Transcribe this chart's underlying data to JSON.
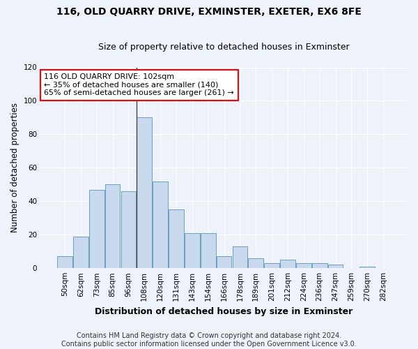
{
  "title": "116, OLD QUARRY DRIVE, EXMINSTER, EXETER, EX6 8FE",
  "subtitle": "Size of property relative to detached houses in Exminster",
  "xlabel": "Distribution of detached houses by size in Exminster",
  "ylabel": "Number of detached properties",
  "bar_color": "#c8d9ed",
  "bar_edge_color": "#6a9fc0",
  "background_color": "#eef2fa",
  "categories": [
    "50sqm",
    "62sqm",
    "73sqm",
    "85sqm",
    "96sqm",
    "108sqm",
    "120sqm",
    "131sqm",
    "143sqm",
    "154sqm",
    "166sqm",
    "178sqm",
    "189sqm",
    "201sqm",
    "212sqm",
    "224sqm",
    "236sqm",
    "247sqm",
    "259sqm",
    "270sqm",
    "282sqm"
  ],
  "values": [
    7,
    19,
    47,
    50,
    46,
    90,
    52,
    35,
    21,
    21,
    7,
    13,
    6,
    3,
    5,
    3,
    3,
    2,
    0,
    1,
    0
  ],
  "annotation_text": "116 OLD QUARRY DRIVE: 102sqm\n← 35% of detached houses are smaller (140)\n65% of semi-detached houses are larger (261) →",
  "vline_x_index": 5,
  "ylim": [
    0,
    120
  ],
  "yticks": [
    0,
    20,
    40,
    60,
    80,
    100,
    120
  ],
  "footer_line1": "Contains HM Land Registry data © Crown copyright and database right 2024.",
  "footer_line2": "Contains public sector information licensed under the Open Government Licence v3.0.",
  "title_fontsize": 10,
  "subtitle_fontsize": 9,
  "xlabel_fontsize": 9,
  "ylabel_fontsize": 8.5,
  "tick_fontsize": 7.5,
  "annotation_fontsize": 8,
  "footer_fontsize": 7
}
